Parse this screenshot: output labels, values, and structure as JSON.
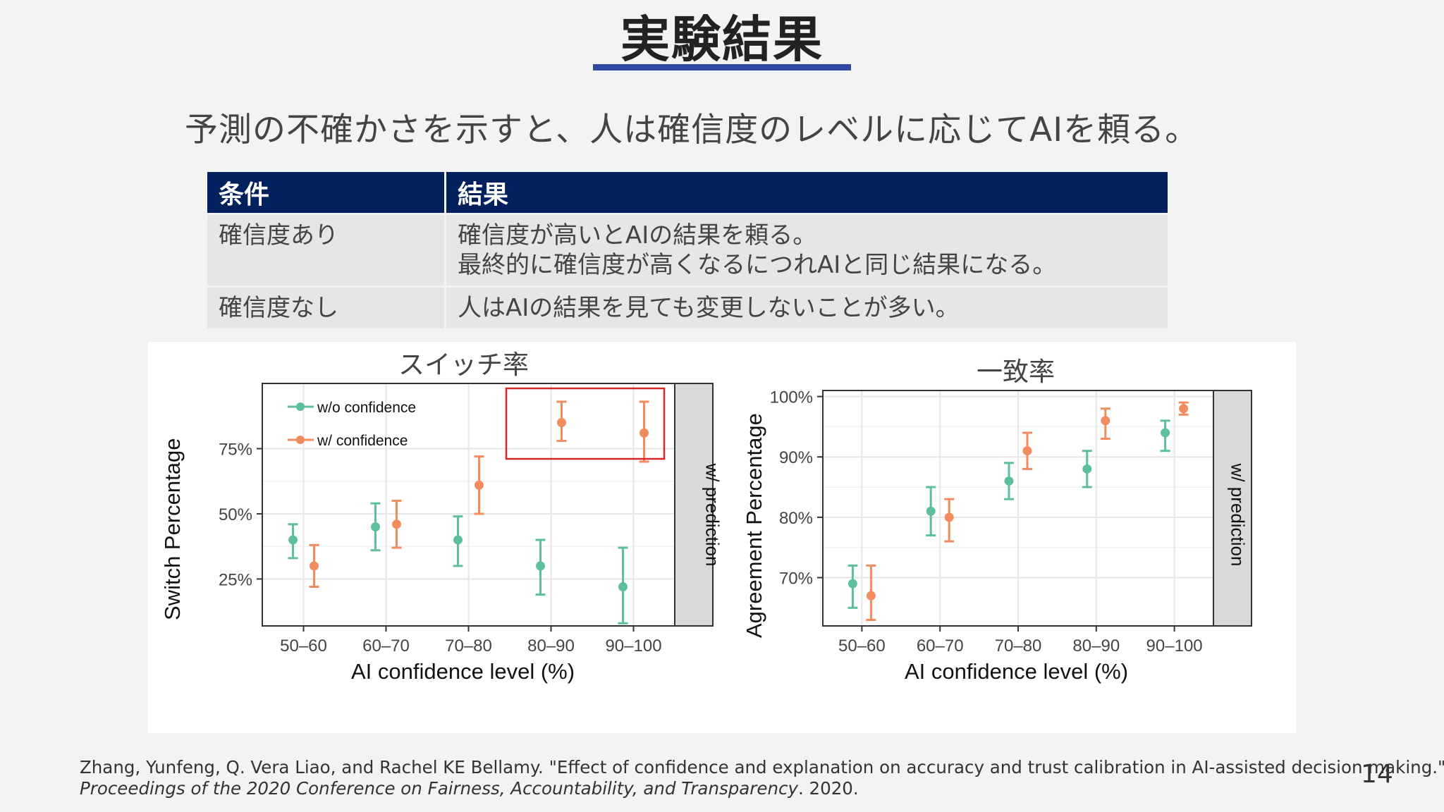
{
  "slide": {
    "title": "実験結果",
    "subtitle": "予測の不確かさを示すと、人は確信度のレベルに応じてAIを頼る。",
    "page_number": "14",
    "accent_color": "#2f4aa0"
  },
  "table": {
    "headers": [
      "条件",
      "結果"
    ],
    "rows": [
      {
        "condition": "確信度あり",
        "result_lines": [
          "確信度が高いとAIの結果を頼る。",
          "最終的に確信度が高くなるにつれAIと同じ結果になる。"
        ]
      },
      {
        "condition": "確信度なし",
        "result_lines": [
          "人はAIの結果を見ても変更しないことが多い。"
        ]
      }
    ],
    "header_color": "#02205c"
  },
  "citation": {
    "line1": "Zhang, Yunfeng, Q. Vera Liao, and Rachel KE Bellamy. \"Effect of confidence and explanation on accuracy and trust calibration in AI-assisted decision making.\"",
    "venue": "Proceedings of the 2020 Conference on Fairness, Accountability, and Transparency",
    "year": ". 2020."
  },
  "chart_data": [
    {
      "type": "scatter",
      "title": "スイッチ率",
      "xlabel": "AI confidence level (%)",
      "ylabel": "Switch Percentage",
      "strip_label": "w/ prediction",
      "categories": [
        "50–60",
        "60–70",
        "70–80",
        "80–90",
        "90–100"
      ],
      "ylim": [
        0.07,
        1.0
      ],
      "yticks": [
        0.25,
        0.5,
        0.75
      ],
      "ytick_labels": [
        "25%",
        "50%",
        "75%"
      ],
      "legend_position": "top-left",
      "highlight_box": {
        "from_category": "80–90",
        "to_category": "90–100",
        "color": "#d62728"
      },
      "series": [
        {
          "name": "w/o confidence",
          "color": "#5dbf9c",
          "values": [
            0.4,
            0.45,
            0.4,
            0.3,
            0.22
          ],
          "lower": [
            0.33,
            0.36,
            0.3,
            0.19,
            0.08
          ],
          "upper": [
            0.46,
            0.54,
            0.49,
            0.4,
            0.37
          ]
        },
        {
          "name": "w/ confidence",
          "color": "#f08c5e",
          "values": [
            0.3,
            0.46,
            0.61,
            0.85,
            0.81
          ],
          "lower": [
            0.22,
            0.37,
            0.5,
            0.78,
            0.7
          ],
          "upper": [
            0.38,
            0.55,
            0.72,
            0.93,
            0.93
          ]
        }
      ]
    },
    {
      "type": "scatter",
      "title": "一致率",
      "xlabel": "AI confidence level (%)",
      "ylabel": "Agreement Percentage",
      "strip_label": "w/ prediction",
      "categories": [
        "50–60",
        "60–70",
        "70–80",
        "80–90",
        "90–100"
      ],
      "ylim": [
        0.62,
        1.01
      ],
      "yticks": [
        0.7,
        0.8,
        0.9,
        1.0
      ],
      "ytick_labels": [
        "70%",
        "80%",
        "90%",
        "100%"
      ],
      "series": [
        {
          "color": "#5dbf9c",
          "values": [
            0.69,
            0.81,
            0.86,
            0.88,
            0.94
          ],
          "lower": [
            0.65,
            0.77,
            0.83,
            0.85,
            0.91
          ],
          "upper": [
            0.72,
            0.85,
            0.89,
            0.91,
            0.96
          ]
        },
        {
          "color": "#f08c5e",
          "values": [
            0.67,
            0.8,
            0.91,
            0.96,
            0.98
          ],
          "lower": [
            0.63,
            0.76,
            0.88,
            0.93,
            0.97
          ],
          "upper": [
            0.72,
            0.83,
            0.94,
            0.98,
            0.99
          ]
        }
      ]
    }
  ]
}
